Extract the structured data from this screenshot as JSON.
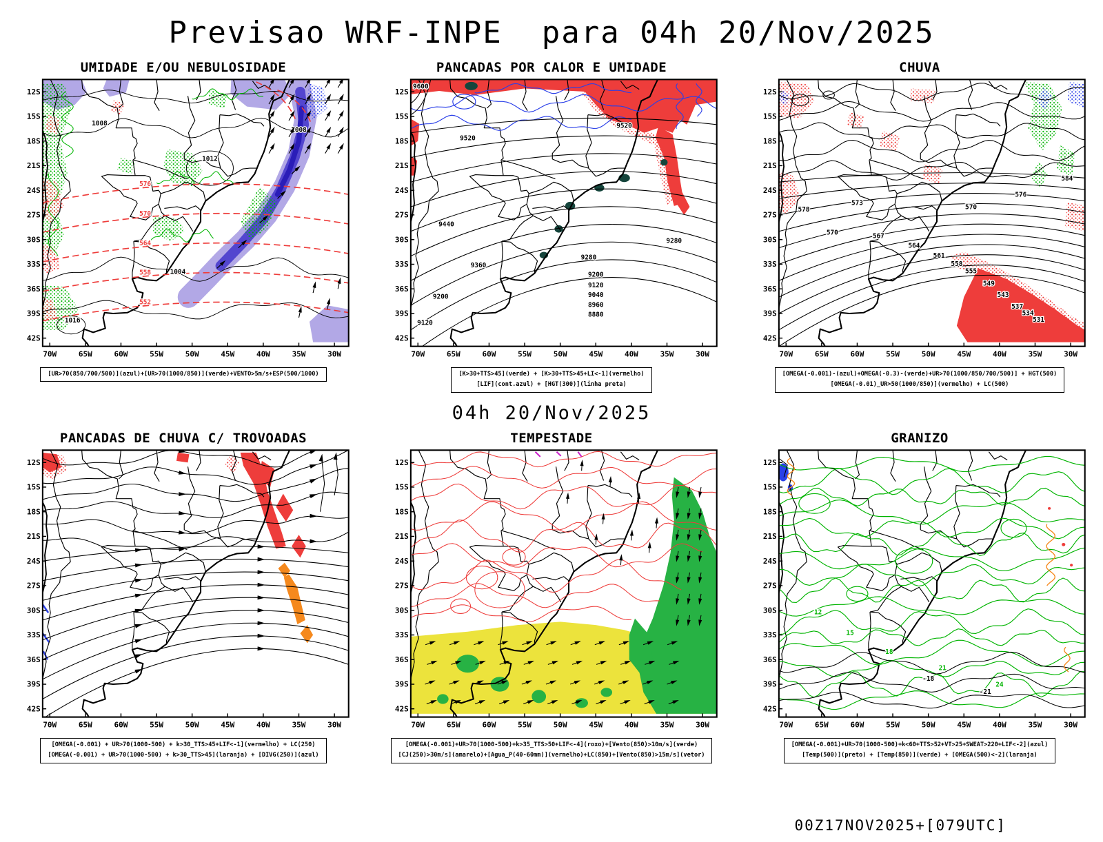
{
  "header": {
    "title": "Previsao WRF-INPE  para 04h 20/Nov/2025"
  },
  "mid_label": "04h 20/Nov/2025",
  "footer": {
    "runstamp": "00Z17NOV2025+[079UTC]"
  },
  "axes": {
    "lat": [
      "12S",
      "15S",
      "18S",
      "21S",
      "24S",
      "27S",
      "30S",
      "33S",
      "36S",
      "39S",
      "42S"
    ],
    "lon": [
      "70W",
      "65W",
      "60W",
      "55W",
      "50W",
      "45W",
      "40W",
      "35W",
      "30W"
    ]
  },
  "colors": {
    "black": "#000000",
    "red": "#ee3d3b",
    "green": "#00b400",
    "green_fill": "#27b244",
    "blue": "#2a3fe8",
    "lavender": "#b2a8e6",
    "dark_blue": "#5346cf",
    "deep_blue": "#2a1db8",
    "teal": "#15453c",
    "orange": "#f5891d",
    "yellow": "#ece33c",
    "magenta": "#cc22cc"
  },
  "panels": [
    {
      "id": "umidade",
      "title": "UMIDADE E/OU NEBULOSIDADE",
      "caption": [
        "[UR>70(850/700/500)](azul)+[UR>70(1000/850)](verde)+VENTO>5m/s+ESP(500/1000)"
      ],
      "pressure_labels": [
        "1008",
        "1008",
        "1012",
        "1004",
        "1016"
      ],
      "thickness_labels": [
        "576",
        "570",
        "564",
        "558",
        "552"
      ]
    },
    {
      "id": "pancadas-calor-umidade",
      "title": "PANCADAS POR CALOR E UMIDADE",
      "caption": [
        "[K>30+TTS>45](verde) + [K>30+TTS>45+LI<-1](vermelho)",
        "[LIF](cont.azul) + [HGT(300)](linha preta)"
      ],
      "height_labels": [
        "9600",
        "9520",
        "9520",
        "9440",
        "9360",
        "9280",
        "9280",
        "9200",
        "9200",
        "9120",
        "9120",
        "9040",
        "8960",
        "8880"
      ]
    },
    {
      "id": "chuva",
      "title": "CHUVA",
      "caption": [
        "[OMEGA(-0.001)-(azul)+OMEGA(-0.3)-(verde)+UR>70(1000/850/700/500)] + HGT(500)",
        "[OMEGA(-0.01)_UR>50(1000/850)](vermelho) + LC(500)"
      ],
      "height_labels": [
        "578",
        "573",
        "570",
        "570",
        "567",
        "564",
        "561",
        "558",
        "555",
        "549",
        "543",
        "537",
        "534",
        "531",
        "576",
        "584"
      ]
    },
    {
      "id": "pancadas-trovoadas",
      "title": "PANCADAS DE CHUVA C/ TROVOADAS",
      "caption": [
        "[OMEGA(-0.001) + UR>70(1000-500) + k>30_TTS>45+LIF<-1](vermelho) + LC(250)",
        "[OMEGA(-0.001) + UR>70(1000-500) + k>30_TTS>45](laranja) + [DIVG(250)](azul)"
      ]
    },
    {
      "id": "tempestade",
      "title": "TEMPESTADE",
      "caption": [
        "[OMEGA(-0.001)+UR>70(1000-500)+k>35_TTS>50+LIF<-4](roxo)+[Vento(850)>10m/s](verde)",
        "[CJ(250)>30m/s](amarelo)+[Agua_P(40-60mm)](vermelho)+LC(850)+[Vento(850)>15m/s](vetor)"
      ]
    },
    {
      "id": "granizo",
      "title": "GRANIZO",
      "caption": [
        "[OMEGA(-0.001)+UR>70(1000-500)+k<60+TTS>52+VT>25+SWEAT>220+LIF<-2](azul)",
        "[Temp(500)](preto) + [Temp(850)](verde) + [OMEGA(500)<-2](laranja)"
      ],
      "temp850_labels": [
        "12",
        "15",
        "18",
        "21",
        "24"
      ],
      "temp500_labels": [
        "-18",
        "-21"
      ]
    }
  ]
}
